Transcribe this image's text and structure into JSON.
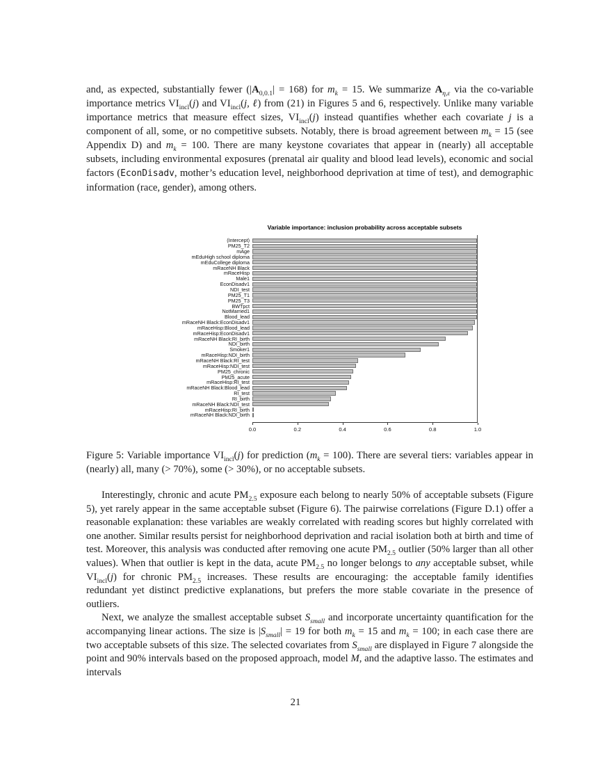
{
  "page_number": "21",
  "text": {
    "para1_html": "and, as expected, substantially fewer (|<span class=\"bbb\">A</span><sub>0,0.1</sub>| = 168) for <i>m<sub>k</sub></i> = 15. We summarize <span class=\"bbb\">A</span><sub><i>η,ε</i></sub> via the co-variable importance metrics VI<sub>incl</sub>(<i>j</i>) and VI<sub>incl</sub>(<i>j, ℓ</i>) from (21) in Figures 5 and 6, respectively. Unlike many variable importance metrics that measure effect sizes, VI<sub>incl</sub>(<i>j</i>) instead quantifies whether each covariate <i>j</i> is a component of all, some, or no competitive subsets. Notably, there is broad agreement between <i>m<sub>k</sub></i> = 15 (see Appendix D) and <i>m<sub>k</sub></i> = 100. There are many keystone covariates that appear in (nearly) all acceptable subsets, including environmental exposures (prenatal air quality and blood lead levels), economic and social factors (<span class=\"tt\">EconDisadv</span>, mother’s education level, neighborhood deprivation at time of test), and demographic information (race, gender), among others.",
    "caption_html": "Figure 5: Variable importance VI<sub>incl</sub>(<i>j</i>) for prediction (<i>m<sub>k</sub></i> = 100). There are several tiers: variables appear in (nearly) all, many (&gt; 70%), some (&gt; 30%), or no acceptable subsets.",
    "para2_html": "Interestingly, chronic and acute PM<sub>2.5</sub> exposure each belong to nearly 50% of acceptable subsets (Figure 5), yet rarely appear in the same acceptable subset (Figure 6). The pairwise correlations (Figure D.1) offer a reasonable explanation: these variables are weakly correlated with reading scores but highly correlated with one another. Similar results persist for neighborhood deprivation and racial isolation both at birth and time of test. Moreover, this analysis was conducted after removing one acute PM<sub>2.5</sub> outlier (50% larger than all other values). When that outlier is kept in the data, acute PM<sub>2.5</sub> no longer belongs to <i>any</i> acceptable subset, while VI<sub>incl</sub>(<i>j</i>) for chronic PM<sub>2.5</sub> increases. These results are encouraging: the acceptable family identifies redundant yet distinct predictive explanations, but prefers the more stable covariate in the presence of outliers.",
    "para3_html": "Next, we analyze the smallest acceptable subset <i>S<sub>small</sub></i> and incorporate uncertainty quantification for the accompanying linear actions. The size is |<i>S<sub>small</sub></i>| = 19 for both <i>m<sub>k</sub></i> = 15 and <i>m<sub>k</sub></i> = 100; in each case there are two acceptable subsets of this size. The selected covariates from <i>S<sub>small</sub></i> are displayed in Figure 7 alongside the point and 90% intervals based on the proposed approach, model <i>M</i>, and the adaptive lasso. The estimates and intervals"
  },
  "chart_data": {
    "type": "bar",
    "orientation": "horizontal",
    "title": "Variable importance: inclusion probability across acceptable subsets",
    "xlabel": "",
    "ylabel": "",
    "xlim": [
      0,
      1
    ],
    "x_tick_labels": [
      "0.0",
      "0.2",
      "0.4",
      "0.6",
      "0.8",
      "1.0"
    ],
    "grid": false,
    "legend": "none",
    "bar_fill": "#bfbfbf",
    "bar_border": "#737373",
    "categories": [
      "(Intercept)",
      "PM25_T2",
      "mAge",
      "mEduHigh school diploma",
      "mEduCollege diploma",
      "mRaceNH Black",
      "mRaceHisp",
      "Male1",
      "EconDisadv1",
      "NDI_test",
      "PM25_T1",
      "PM25_T3",
      "BWTpct",
      "NotMarried1",
      "Blood_lead",
      "mRaceNH Black:EconDisadv1",
      "mRaceHisp:Blood_lead",
      "mRaceHisp:EconDisadv1",
      "mRaceNH Black:RI_birth",
      "NDI_birth",
      "Smoker1",
      "mRaceHisp:NDI_birth",
      "mRaceNH Black:RI_test",
      "mRaceHisp:NDI_test",
      "PM25_chronic",
      "PM25_acute",
      "mRaceHisp:RI_test",
      "mRaceNH Black:Blood_lead",
      "RI_test",
      "RI_birth",
      "mRaceNH Black:NDI_test",
      "mRaceHisp:RI_birth",
      "mRaceNH Black:NDI_birth"
    ],
    "values": [
      1.0,
      1.0,
      1.0,
      1.0,
      1.0,
      1.0,
      1.0,
      1.0,
      1.0,
      1.0,
      1.0,
      1.0,
      1.0,
      1.0,
      1.0,
      0.99,
      0.98,
      0.96,
      0.86,
      0.83,
      0.75,
      0.68,
      0.47,
      0.46,
      0.45,
      0.44,
      0.43,
      0.42,
      0.37,
      0.35,
      0.34,
      0.005,
      0.005
    ]
  }
}
